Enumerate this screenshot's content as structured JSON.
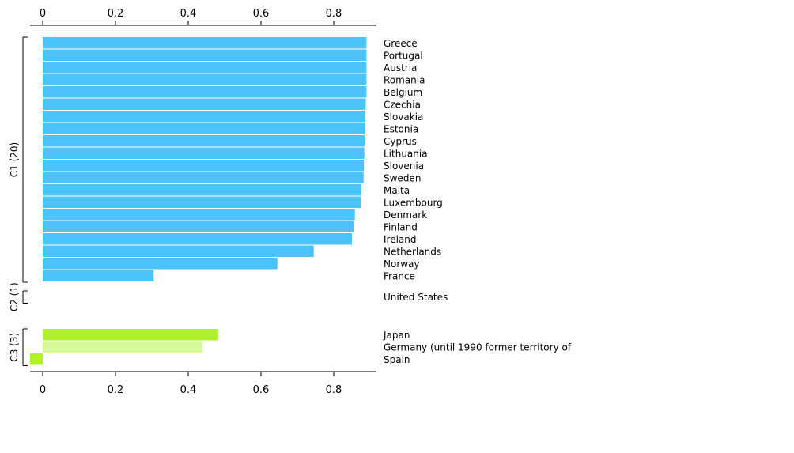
{
  "chart_data": {
    "type": "bar",
    "orientation": "horizontal",
    "title": "",
    "xlabel": "",
    "ylabel": "",
    "xlim": [
      -0.035,
      0.92
    ],
    "xticks": [
      "0",
      "0.2",
      "0.4",
      "0.6",
      "0.8"
    ],
    "xtick_values": [
      0,
      0.2,
      0.4,
      0.6,
      0.8
    ],
    "grid": false,
    "colors": {
      "cluster1": "#4cc2fa",
      "cluster3": "#b0f02c",
      "cluster3_light": "#d6fa9a",
      "axis": "#000000"
    },
    "clusters": [
      {
        "label": "C1 (20)",
        "items": [
          {
            "name": "Greece",
            "value": 0.89
          },
          {
            "name": "Portugal",
            "value": 0.89
          },
          {
            "name": "Austria",
            "value": 0.89
          },
          {
            "name": "Romania",
            "value": 0.89
          },
          {
            "name": "Belgium",
            "value": 0.89
          },
          {
            "name": "Czechia",
            "value": 0.888
          },
          {
            "name": "Slovakia",
            "value": 0.887
          },
          {
            "name": "Estonia",
            "value": 0.886
          },
          {
            "name": "Cyprus",
            "value": 0.885
          },
          {
            "name": "Lithuania",
            "value": 0.884
          },
          {
            "name": "Slovenia",
            "value": 0.883
          },
          {
            "name": "Sweden",
            "value": 0.882
          },
          {
            "name": "Malta",
            "value": 0.876
          },
          {
            "name": "Luxembourg",
            "value": 0.874
          },
          {
            "name": "Denmark",
            "value": 0.858
          },
          {
            "name": "Finland",
            "value": 0.855
          },
          {
            "name": "Ireland",
            "value": 0.85
          },
          {
            "name": "Netherlands",
            "value": 0.745
          },
          {
            "name": "Norway",
            "value": 0.645
          },
          {
            "name": "France",
            "value": 0.305
          }
        ]
      },
      {
        "label": "C2 (1)",
        "items": [
          {
            "name": "United States",
            "value": 0
          }
        ]
      },
      {
        "label": "C3 (3)",
        "items": [
          {
            "name": "Japan",
            "value": 0.483
          },
          {
            "name": "Germany (until 1990 former territory of",
            "value": 0.44,
            "shade": "light"
          },
          {
            "name": "Spain",
            "value": -0.035
          }
        ]
      }
    ]
  }
}
